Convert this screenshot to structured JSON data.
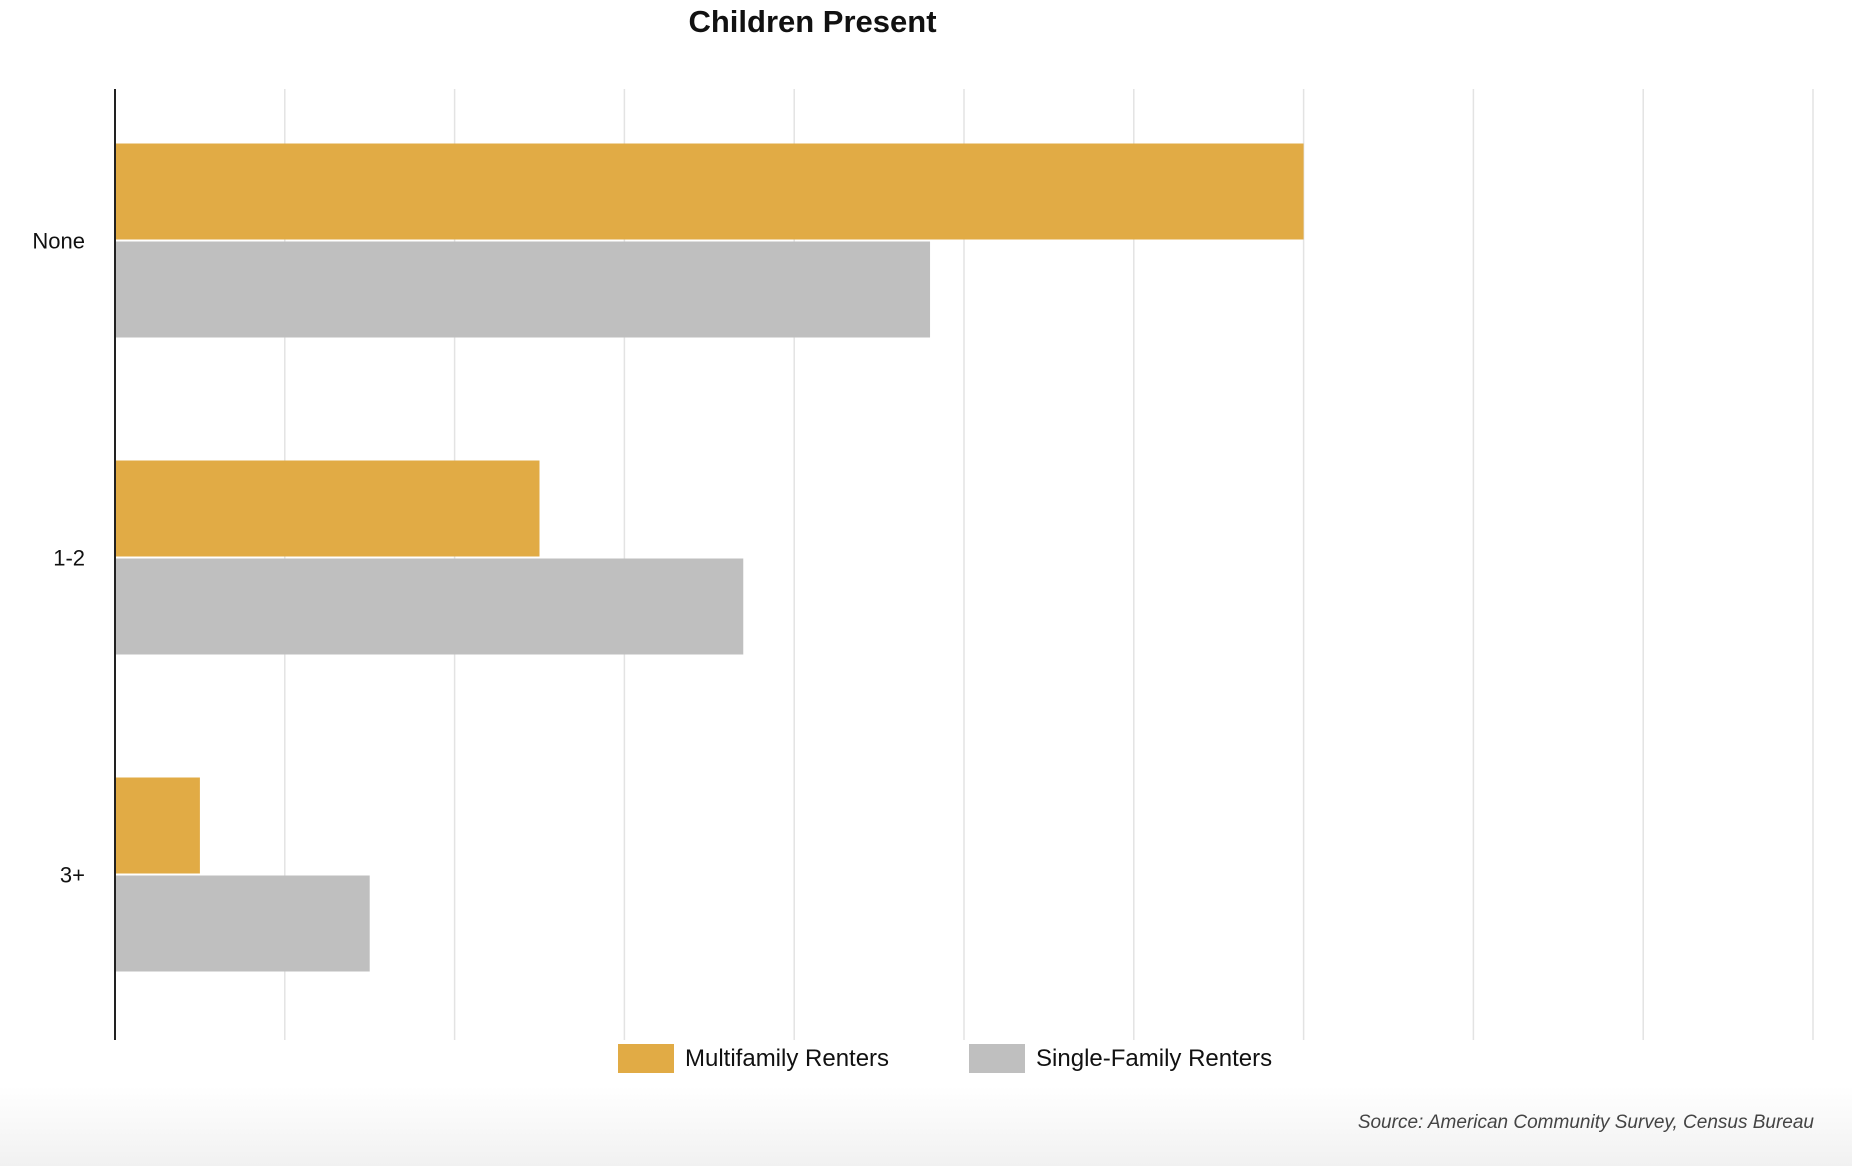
{
  "chart_data": {
    "type": "bar",
    "orientation": "horizontal",
    "title": "Children Present",
    "categories": [
      "None",
      "1-2",
      "3+"
    ],
    "series": [
      {
        "name": "Multifamily Renters",
        "color": "#e1ab45",
        "values": [
          70,
          25,
          5
        ]
      },
      {
        "name": "Single-Family Renters",
        "color": "#bfbfbf",
        "values": [
          48,
          37,
          15
        ]
      }
    ],
    "xlim": [
      0,
      100
    ],
    "grid": true,
    "tick_labels_visible": false,
    "legend": "bottom-center"
  },
  "source": "Source: American Community Survey, Census Bureau"
}
